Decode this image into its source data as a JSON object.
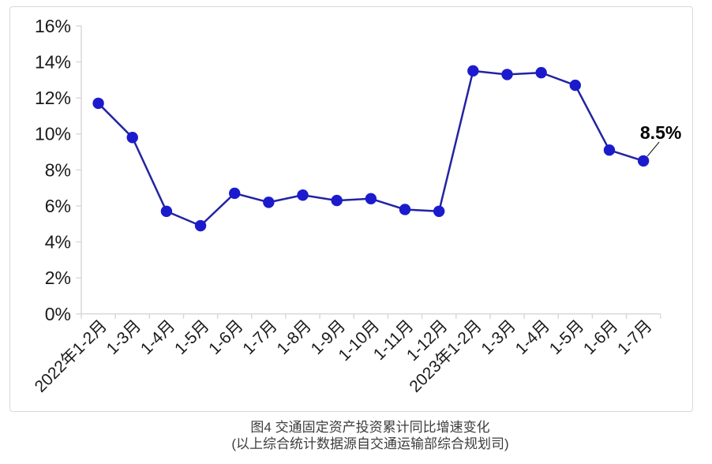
{
  "figure": {
    "caption_title": "图4  交通固定资产投资累计同比增速变化",
    "caption_source": "(以上综合统计数据源自交通运输部综合规划司)"
  },
  "colors": {
    "line": "#2323A2",
    "marker": "#1B1BCD",
    "axis": "#D9D9D9",
    "tick_text": "#1A1A1A",
    "annotation_text": "#000000",
    "caption_text": "#3D3D3D"
  },
  "chart_data": {
    "type": "line",
    "title": "图4 交通固定资产投资累计同比增速变化",
    "categories": [
      "2022年1-2月",
      "1-3月",
      "1-4月",
      "1-5月",
      "1-6月",
      "1-7月",
      "1-8月",
      "1-9月",
      "1-10月",
      "1-11月",
      "1-12月",
      "2023年1-2月",
      "1-3月",
      "1-4月",
      "1-5月",
      "1-6月",
      "1-7月"
    ],
    "series": [
      {
        "name": "交通固定资产投资累计同比增速",
        "values": [
          11.7,
          9.8,
          5.7,
          4.9,
          6.7,
          6.2,
          6.6,
          6.3,
          6.4,
          5.8,
          5.7,
          13.5,
          13.3,
          13.4,
          12.7,
          9.1,
          8.5
        ]
      }
    ],
    "xlabel": "",
    "ylabel": "",
    "ylim": [
      0,
      16
    ],
    "ytick_step": 2,
    "ytick_labels": [
      "0%",
      "2%",
      "4%",
      "6%",
      "8%",
      "10%",
      "12%",
      "14%",
      "16%"
    ],
    "grid": false,
    "legend": "none",
    "marker": "circle",
    "annotation": {
      "index": 16,
      "text": "8.5%"
    }
  }
}
